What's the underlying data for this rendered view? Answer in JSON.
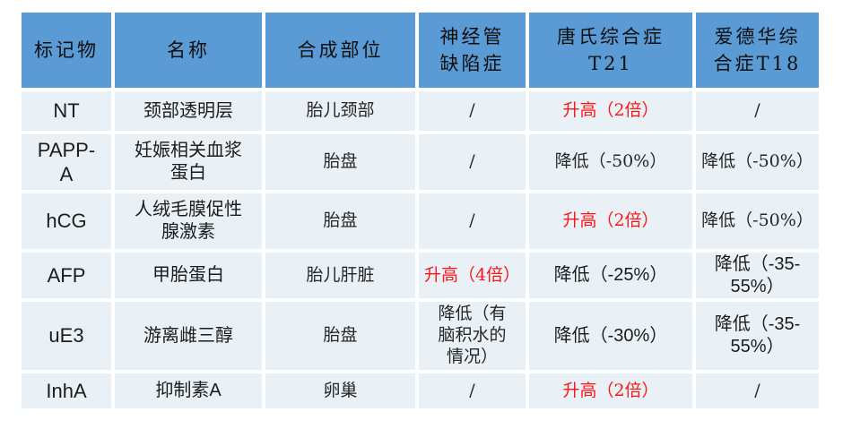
{
  "palette": {
    "header_bg": "#5b9bd5",
    "row_bg": "#e9f1f6",
    "gutter": "#ffffff",
    "text": "#1c1c1c",
    "elevated_text": "#fb1616"
  },
  "table": {
    "headers": [
      "标记物",
      "名称",
      "合成部位",
      "神经管\n缺陷症",
      "唐氏综合症\nT21",
      "爱德华综\n合症T18"
    ],
    "rows": [
      {
        "cells": [
          "NT",
          "颈部透明层",
          "胎儿颈部",
          "/",
          "升高（2倍）",
          "/"
        ],
        "red": [
          false,
          false,
          false,
          false,
          true,
          false
        ]
      },
      {
        "cells": [
          "PAPP-\nA",
          "妊娠相关血浆\n蛋白",
          "胎盘",
          "/",
          "降低（-50%）",
          "降低（-50%）"
        ],
        "red": [
          false,
          false,
          false,
          false,
          false,
          false
        ]
      },
      {
        "cells": [
          "hCG",
          "人绒毛膜促性\n腺激素",
          "胎盘",
          "/",
          "升高（2倍）",
          "降低（-50%）"
        ],
        "red": [
          false,
          false,
          false,
          false,
          true,
          false
        ]
      },
      {
        "cells": [
          "AFP",
          "甲胎蛋白",
          "胎儿肝脏",
          "升高（4倍）",
          "降低（-25%）",
          "降低（-35-\n55%）"
        ],
        "red": [
          false,
          false,
          false,
          true,
          false,
          false
        ]
      },
      {
        "cells": [
          "uE3",
          "游离雌三醇",
          "胎盘",
          "降低（有\n脑积水的\n情况）",
          "降低（-30%）",
          "降低（-35-\n55%）"
        ],
        "red": [
          false,
          false,
          false,
          false,
          false,
          false
        ]
      },
      {
        "cells": [
          "InhA",
          "抑制素A",
          "卵巢",
          "/",
          "升高（2倍）",
          "/"
        ],
        "red": [
          false,
          false,
          false,
          false,
          true,
          false
        ]
      }
    ]
  }
}
